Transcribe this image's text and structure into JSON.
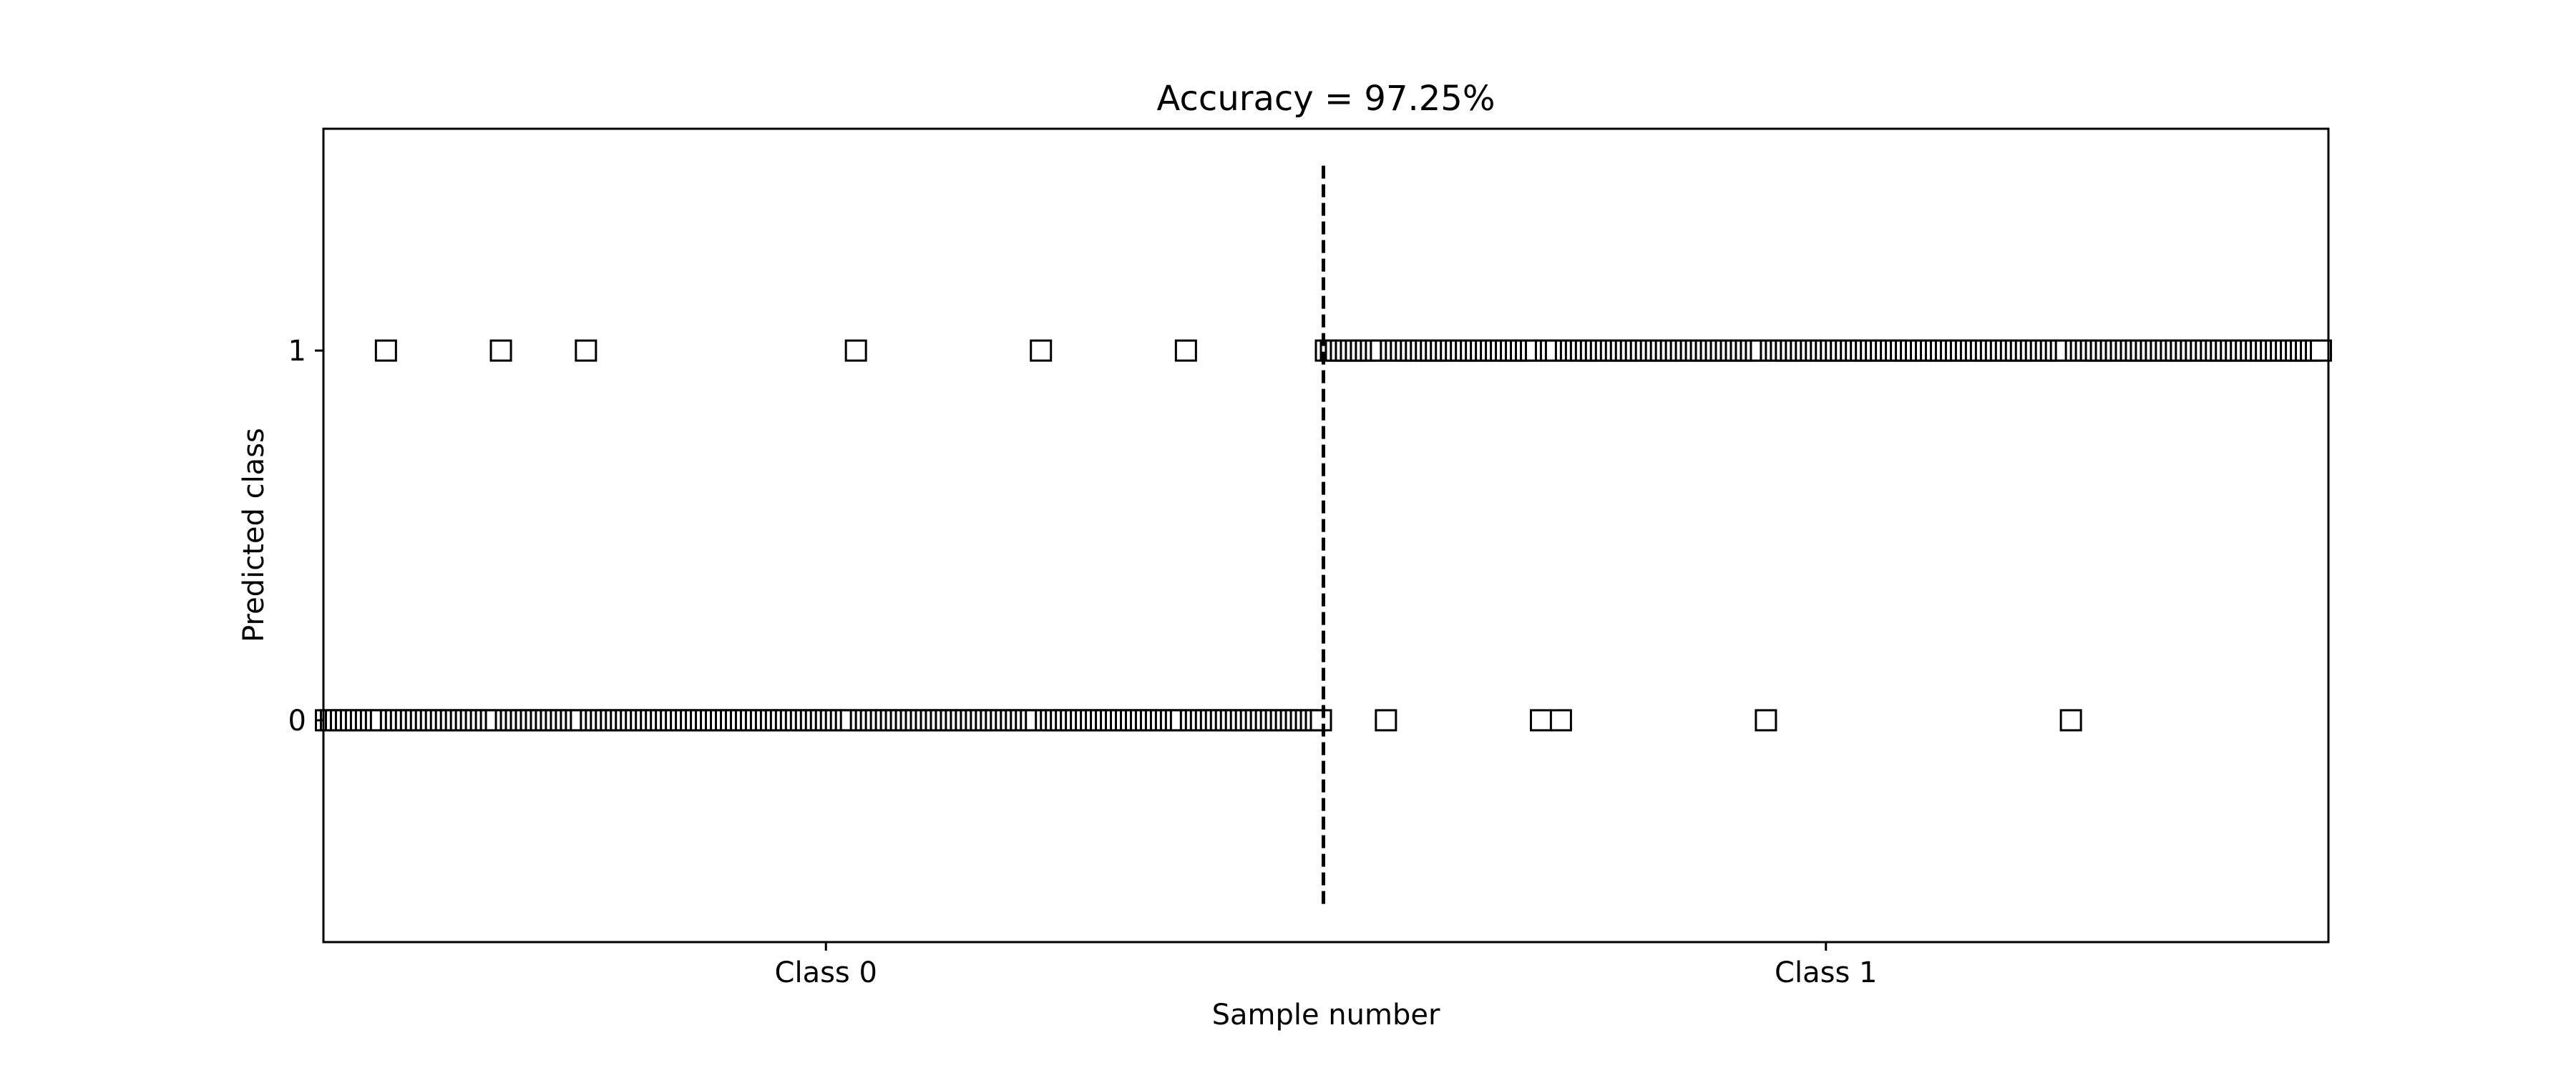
{
  "chart_data": {
    "type": "scatter",
    "title": "Accuracy = 97.25%",
    "xlabel": "Sample number",
    "ylabel": "Predicted class",
    "xlim": [
      -0.5,
      400.5
    ],
    "ylim": [
      -0.6,
      1.6
    ],
    "x_ticks": [
      {
        "value": 100,
        "label": "Class 0"
      },
      {
        "value": 300,
        "label": "Class 1"
      }
    ],
    "y_ticks": [
      {
        "value": 0,
        "label": "0"
      },
      {
        "value": 1,
        "label": "1"
      }
    ],
    "marker": "square-open",
    "marker_color": "#000000",
    "divider": {
      "x": 199.5,
      "style": "dashed",
      "ymin": -0.5,
      "ymax": 1.5
    },
    "series": [
      {
        "x_range": [
          0,
          399
        ],
        "default_values": [
          {
            "x_range": [
              0,
              199
            ],
            "y": 0
          },
          {
            "x_range": [
              200,
              399
            ],
            "y": 1
          }
        ],
        "flipped": [
          {
            "x": 12,
            "y": 1
          },
          {
            "x": 35,
            "y": 1
          },
          {
            "x": 52,
            "y": 1
          },
          {
            "x": 106,
            "y": 1
          },
          {
            "x": 143,
            "y": 1
          },
          {
            "x": 172,
            "y": 1
          },
          {
            "x": 212,
            "y": 0
          },
          {
            "x": 243,
            "y": 0
          },
          {
            "x": 247,
            "y": 0
          },
          {
            "x": 288,
            "y": 0
          },
          {
            "x": 349,
            "y": 0
          }
        ]
      }
    ],
    "grid": false,
    "legend": "none"
  }
}
